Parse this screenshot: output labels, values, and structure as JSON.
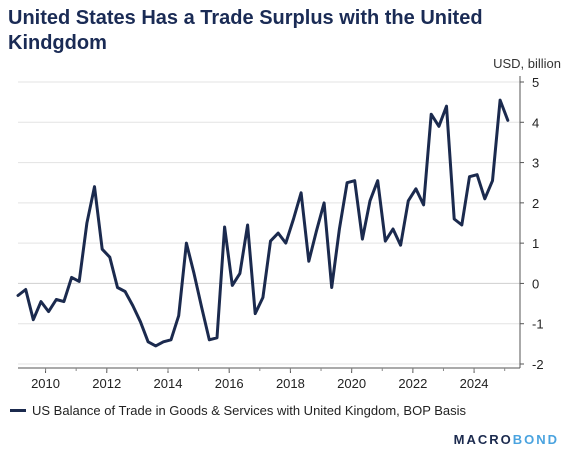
{
  "chart_data": {
    "type": "line",
    "title": "United States Has a Trade Surplus with the United Kindgdom",
    "unit_label": "USD, billion",
    "ylim": [
      -2,
      5
    ],
    "yticks": [
      "-2",
      "-1",
      "0",
      "1",
      "2",
      "3",
      "4",
      "5"
    ],
    "xlim": [
      2009.1,
      2025.5
    ],
    "xticks": [
      "2010",
      "2012",
      "2014",
      "2016",
      "2018",
      "2020",
      "2022",
      "2024"
    ],
    "grid": true,
    "legend_position": "bottom",
    "series": [
      {
        "name": "US Balance of Trade in Goods & Services with United Kingdom, BOP Basis",
        "color": "#1b2a4e",
        "x": [
          2009.1,
          2009.35,
          2009.6,
          2009.85,
          2010.1,
          2010.35,
          2010.6,
          2010.85,
          2011.1,
          2011.35,
          2011.6,
          2011.85,
          2012.1,
          2012.35,
          2012.6,
          2012.85,
          2013.1,
          2013.35,
          2013.6,
          2013.85,
          2014.1,
          2014.35,
          2014.6,
          2014.85,
          2015.1,
          2015.35,
          2015.6,
          2015.85,
          2016.1,
          2016.35,
          2016.6,
          2016.85,
          2017.1,
          2017.35,
          2017.6,
          2017.85,
          2018.1,
          2018.35,
          2018.6,
          2018.85,
          2019.1,
          2019.35,
          2019.6,
          2019.85,
          2020.1,
          2020.35,
          2020.6,
          2020.85,
          2021.1,
          2021.35,
          2021.6,
          2021.85,
          2022.1,
          2022.35,
          2022.6,
          2022.85,
          2023.1,
          2023.35,
          2023.6,
          2023.85,
          2024.1,
          2024.35,
          2024.6,
          2024.85,
          2025.1
        ],
        "y": [
          -0.3,
          -0.15,
          -0.9,
          -0.45,
          -0.7,
          -0.4,
          -0.45,
          0.15,
          0.05,
          1.5,
          2.4,
          0.85,
          0.65,
          -0.1,
          -0.2,
          -0.55,
          -0.95,
          -1.45,
          -1.55,
          -1.45,
          -1.4,
          -0.8,
          1.0,
          0.25,
          -0.6,
          -1.4,
          -1.35,
          1.4,
          -0.05,
          0.25,
          1.45,
          -0.75,
          -0.35,
          1.05,
          1.25,
          1.0,
          1.6,
          2.25,
          0.55,
          1.3,
          2.0,
          -0.1,
          1.35,
          2.5,
          2.55,
          1.1,
          2.05,
          2.55,
          1.05,
          1.35,
          0.95,
          2.05,
          2.35,
          1.95,
          4.2,
          3.9,
          4.4,
          1.6,
          1.45,
          2.65,
          2.7,
          2.1,
          2.55,
          4.55,
          4.05
        ]
      }
    ]
  },
  "branding": {
    "name_part1": "MACRO",
    "name_part2": "BOND"
  }
}
